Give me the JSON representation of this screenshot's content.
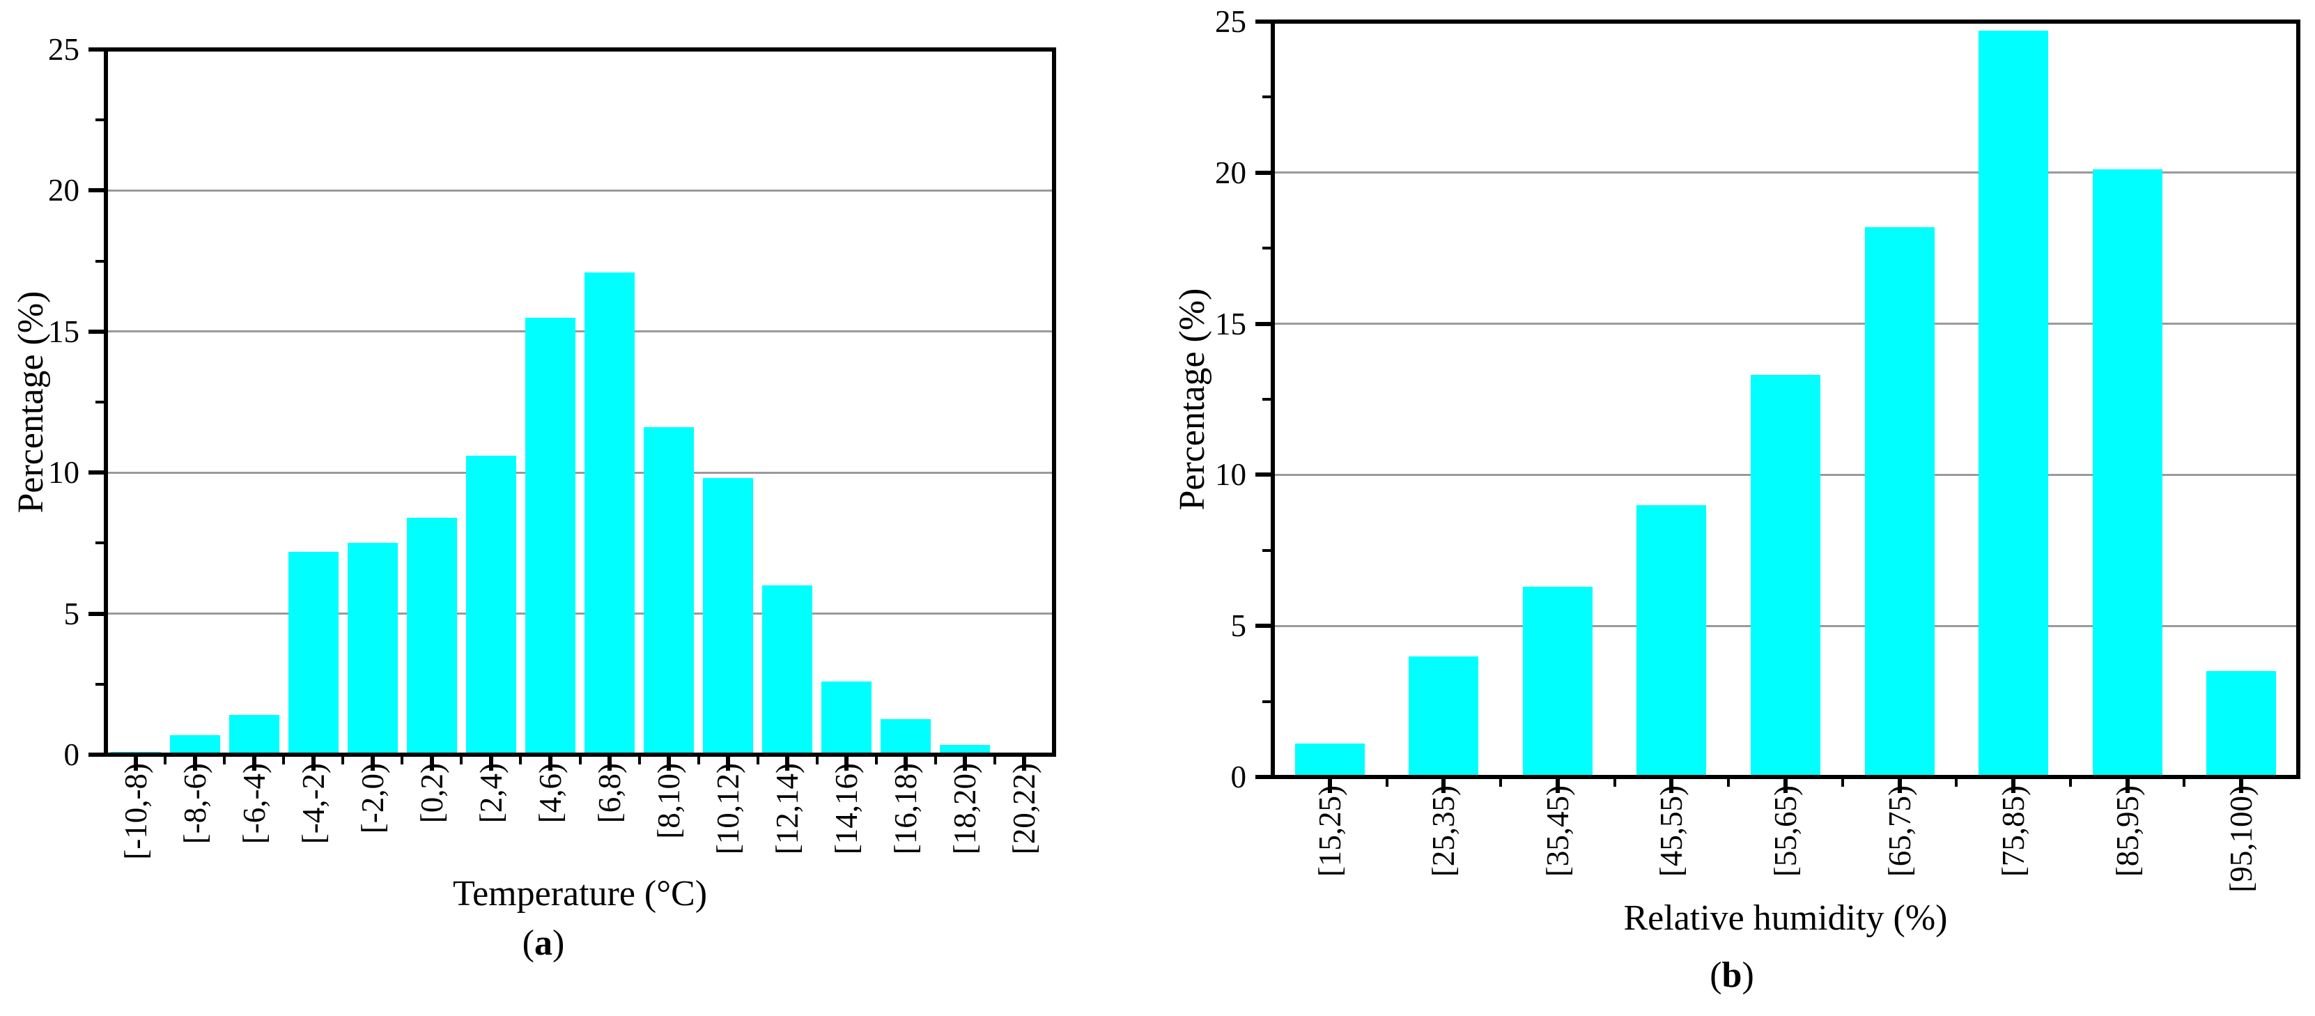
{
  "figure": {
    "background": "#ffffff",
    "text_color": "#000000",
    "panels": [
      {
        "id": "a",
        "caption_open": "(",
        "caption_letter": "a",
        "caption_close": ")",
        "xlabel": "Temperature (°C)",
        "ylabel": "Percentage (%)"
      },
      {
        "id": "b",
        "caption_open": "(",
        "caption_letter": "b",
        "caption_close": ")",
        "xlabel": "Relative humidity (%)",
        "ylabel": "Percentage (%)"
      }
    ]
  },
  "chart_data": [
    {
      "type": "bar",
      "panel": "a",
      "title": "",
      "xlabel": "Temperature (°C)",
      "ylabel": "Percentage (%)",
      "categories": [
        "[-10,-8)",
        "[-8,-6)",
        "[-6,-4)",
        "[-4,-2)",
        "[-2,0)",
        "[0,2)",
        "[2,4)",
        "[4,6)",
        "[6,8)",
        "[8,10)",
        "[10,12)",
        "[12,14)",
        "[14,16)",
        "[16,18)",
        "[18,20)",
        "[20,22)"
      ],
      "values": [
        0.1,
        0.7,
        1.4,
        7.2,
        7.5,
        8.4,
        10.6,
        15.5,
        17.1,
        11.6,
        9.8,
        6.0,
        2.6,
        1.25,
        0.35,
        0
      ],
      "ylim": [
        0,
        25
      ],
      "yticks": [
        0,
        5,
        10,
        15,
        20,
        25
      ],
      "ytick_minor_step": 2.5,
      "grid": "horizontal-major",
      "grid_color": "#9a9a9a",
      "bar_color": "#00ffff",
      "frame": "full-box",
      "legend": "none"
    },
    {
      "type": "bar",
      "panel": "b",
      "title": "",
      "xlabel": "Relative humidity (%)",
      "ylabel": "Percentage (%)",
      "categories": [
        "[15,25)",
        "[25,35)",
        "[35,45)",
        "[45,55)",
        "[55,65)",
        "[65,75)",
        "[75,85)",
        "[85,95)",
        "[95,100)"
      ],
      "values": [
        1.1,
        4.0,
        6.3,
        9.0,
        13.3,
        18.2,
        24.7,
        20.1,
        3.5
      ],
      "ylim": [
        0,
        25
      ],
      "yticks": [
        0,
        5,
        10,
        15,
        20,
        25
      ],
      "ytick_minor_step": 2.5,
      "grid": "horizontal-major",
      "grid_color": "#9a9a9a",
      "bar_color": "#00ffff",
      "frame": "full-box",
      "legend": "none"
    }
  ]
}
